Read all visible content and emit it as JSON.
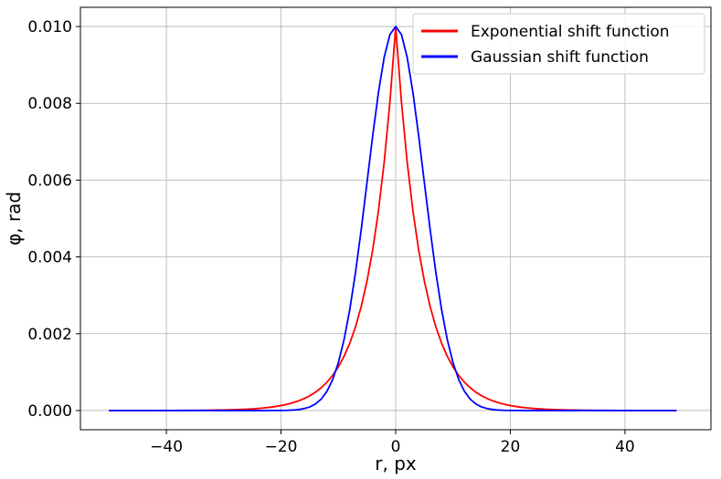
{
  "chart_data": {
    "type": "line",
    "xlabel": "r, px",
    "ylabel": "φ, rad",
    "xlim": [
      -55,
      55
    ],
    "ylim": [
      -0.0005,
      0.0105
    ],
    "xticks": [
      -40,
      -20,
      0,
      20,
      40
    ],
    "xtick_labels": [
      "−40",
      "−20",
      "0",
      "20",
      "40"
    ],
    "yticks": [
      0,
      0.002,
      0.004,
      0.006,
      0.008,
      0.01
    ],
    "ytick_labels": [
      "0.000",
      "0.002",
      "0.004",
      "0.006",
      "0.008",
      "0.010"
    ],
    "grid": true,
    "legend_position": "top-right",
    "x_start": -50,
    "x_end": 49,
    "series": [
      {
        "name": "Exponential shift function",
        "color": "#ff0000",
        "amplitude": 0.01,
        "function": "exponential",
        "decay_length": 4.6,
        "sample_points": [
          {
            "x": -50,
            "y": 0.0
          },
          {
            "x": -20,
            "y": 0.00013
          },
          {
            "x": -10,
            "y": 0.0011
          },
          {
            "x": -5,
            "y": 0.0034
          },
          {
            "x": 0,
            "y": 0.01
          },
          {
            "x": 5,
            "y": 0.0034
          },
          {
            "x": 10,
            "y": 0.0011
          },
          {
            "x": 20,
            "y": 0.00013
          },
          {
            "x": 49,
            "y": 0.0
          }
        ]
      },
      {
        "name": "Gaussian shift function",
        "color": "#0000ff",
        "amplitude": 0.01,
        "function": "gaussian",
        "sigma": 4.9,
        "sample_points": [
          {
            "x": -50,
            "y": 0.0
          },
          {
            "x": -15,
            "y": 9e-05
          },
          {
            "x": -10,
            "y": 0.0012
          },
          {
            "x": -5,
            "y": 0.0059
          },
          {
            "x": 0,
            "y": 0.01
          },
          {
            "x": 5,
            "y": 0.0059
          },
          {
            "x": 10,
            "y": 0.0012
          },
          {
            "x": 15,
            "y": 9e-05
          },
          {
            "x": 49,
            "y": 0.0
          }
        ]
      }
    ]
  }
}
